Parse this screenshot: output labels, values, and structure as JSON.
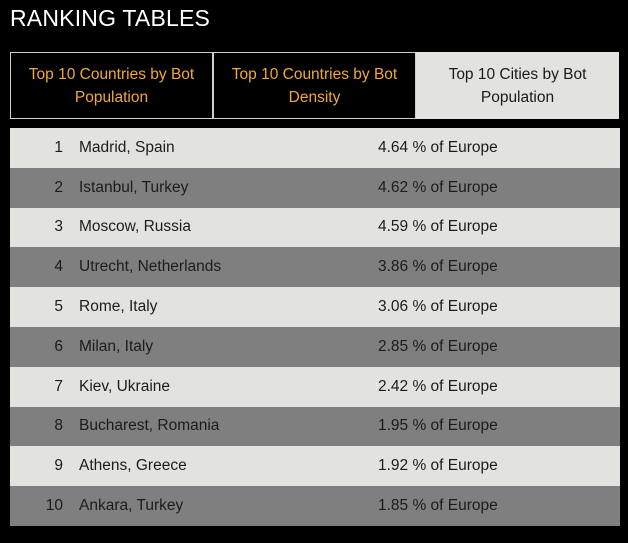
{
  "page": {
    "title": "RANKING TABLES"
  },
  "tabs": [
    {
      "label": "Top 10 Countries by Bot Population",
      "active": false
    },
    {
      "label": "Top 10 Countries by Bot Density",
      "active": false
    },
    {
      "label": "Top 10 Cities by Bot Population",
      "active": true
    }
  ],
  "table": {
    "rows": [
      {
        "rank": "1",
        "city": "Madrid, Spain",
        "share": "4.64 % of Europe"
      },
      {
        "rank": "2",
        "city": "Istanbul, Turkey",
        "share": "4.62 % of Europe"
      },
      {
        "rank": "3",
        "city": "Moscow, Russia",
        "share": "4.59 % of Europe"
      },
      {
        "rank": "4",
        "city": "Utrecht, Netherlands",
        "share": "3.86 % of Europe"
      },
      {
        "rank": "5",
        "city": "Rome, Italy",
        "share": "3.06 % of Europe"
      },
      {
        "rank": "6",
        "city": "Milan, Italy",
        "share": "2.85 % of Europe"
      },
      {
        "rank": "7",
        "city": "Kiev, Ukraine",
        "share": "2.42 % of Europe"
      },
      {
        "rank": "8",
        "city": "Bucharest, Romania",
        "share": "1.95 % of Europe"
      },
      {
        "rank": "9",
        "city": "Athens, Greece",
        "share": "1.92 % of Europe"
      },
      {
        "rank": "10",
        "city": "Ankara, Turkey",
        "share": "1.85 % of Europe"
      }
    ]
  },
  "colors": {
    "background": "#000000",
    "tab_inactive_text": "#f0a838",
    "tab_active_bg": "#e2e2de",
    "row_light": "#e2e2de",
    "row_dark": "#7f7f7f"
  }
}
